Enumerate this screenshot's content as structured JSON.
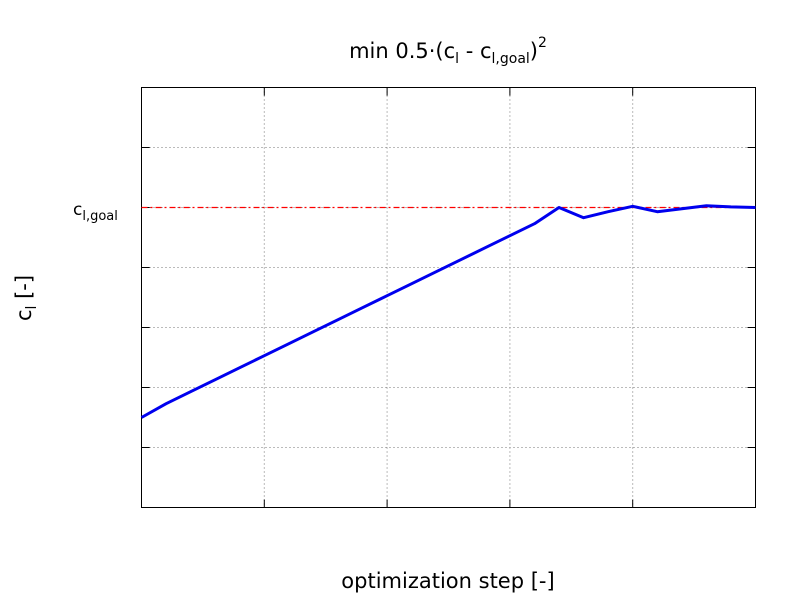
{
  "chart_data": {
    "type": "line",
    "title": {
      "prefix": "min   0.5·(c",
      "sub1": "l",
      "mid": " - c",
      "sub2": "l,goal",
      "close": ")",
      "sup": "2"
    },
    "xlabel": "optimization step [-]",
    "ylabel": {
      "base": "c",
      "sub": "l",
      "rest": " [-]"
    },
    "goal_label": {
      "base": "c",
      "sub": "l,goal"
    },
    "xlim": [
      0,
      25
    ],
    "ylim": [
      0,
      7
    ],
    "goal_value": 5,
    "grid": true,
    "x_tick_count": 5,
    "y_tick_count": 6,
    "series": [
      {
        "values": [
          {
            "x": 0,
            "y": 1.5
          },
          {
            "x": 1,
            "y": 1.73
          },
          {
            "x": 2,
            "y": 1.93
          },
          {
            "x": 3,
            "y": 2.13
          },
          {
            "x": 4,
            "y": 2.33
          },
          {
            "x": 5,
            "y": 2.53
          },
          {
            "x": 6,
            "y": 2.73
          },
          {
            "x": 7,
            "y": 2.93
          },
          {
            "x": 8,
            "y": 3.13
          },
          {
            "x": 9,
            "y": 3.33
          },
          {
            "x": 10,
            "y": 3.53
          },
          {
            "x": 11,
            "y": 3.73
          },
          {
            "x": 12,
            "y": 3.93
          },
          {
            "x": 13,
            "y": 4.13
          },
          {
            "x": 14,
            "y": 4.33
          },
          {
            "x": 15,
            "y": 4.53
          },
          {
            "x": 16,
            "y": 4.73
          },
          {
            "x": 17,
            "y": 5.0
          },
          {
            "x": 18,
            "y": 4.83
          },
          {
            "x": 19,
            "y": 4.93
          },
          {
            "x": 20,
            "y": 5.02
          },
          {
            "x": 21,
            "y": 4.93
          },
          {
            "x": 22,
            "y": 4.98
          },
          {
            "x": 23,
            "y": 5.03
          },
          {
            "x": 24,
            "y": 5.01
          },
          {
            "x": 25,
            "y": 5.0
          }
        ]
      }
    ]
  },
  "colors": {
    "series": "#0000ee",
    "goal": "#ff0000",
    "grid": "#777777",
    "axis": "#000000"
  }
}
